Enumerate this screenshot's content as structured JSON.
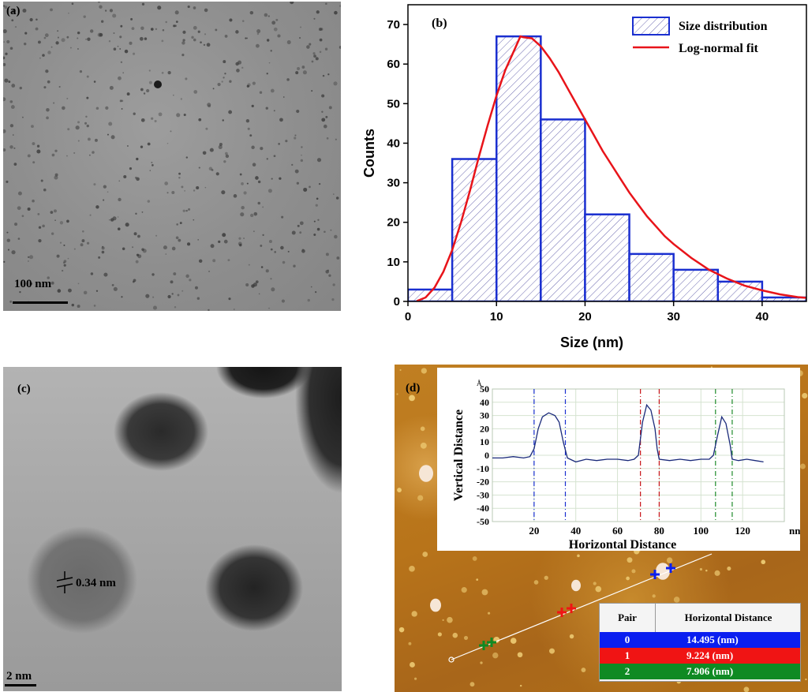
{
  "panel_a": {
    "label": "(a)",
    "scale": "100 nm"
  },
  "panel_b": {
    "label": "(b)"
  },
  "panel_c": {
    "label": "(c)",
    "lattice": "0.34 nm",
    "scale": "2 nm"
  },
  "panel_d": {
    "label": "(d)",
    "table": {
      "headers": [
        "Pair",
        "Horizontal Distance"
      ],
      "rows": [
        {
          "pair": "0",
          "distance": "14.495 (nm)",
          "color": "#0a1ef0"
        },
        {
          "pair": "1",
          "distance": "9.224 (nm)",
          "color": "#f01414"
        },
        {
          "pair": "2",
          "distance": "7.906 (nm)",
          "color": "#0f8a23"
        }
      ]
    }
  },
  "chart_data": [
    {
      "type": "bar",
      "panel": "(b)",
      "xlabel": "Size (nm)",
      "ylabel": "Counts",
      "xlim": [
        0,
        45
      ],
      "ylim": [
        0,
        75
      ],
      "xticks": [
        0,
        10,
        20,
        30,
        40
      ],
      "yticks": [
        0,
        10,
        20,
        30,
        40,
        50,
        60,
        70
      ],
      "bins": [
        {
          "x0": 0,
          "x1": 5,
          "count": 3
        },
        {
          "x0": 5,
          "x1": 10,
          "count": 36
        },
        {
          "x0": 10,
          "x1": 15,
          "count": 67
        },
        {
          "x0": 15,
          "x1": 20,
          "count": 46
        },
        {
          "x0": 20,
          "x1": 25,
          "count": 22
        },
        {
          "x0": 25,
          "x1": 30,
          "count": 12
        },
        {
          "x0": 30,
          "x1": 35,
          "count": 8
        },
        {
          "x0": 35,
          "x1": 40,
          "count": 5
        },
        {
          "x0": 40,
          "x1": 45,
          "count": 1
        }
      ],
      "fit": {
        "name": "Log-normal fit",
        "points": [
          [
            1,
            0.1
          ],
          [
            2,
            1
          ],
          [
            3,
            3.5
          ],
          [
            4,
            7.5
          ],
          [
            5,
            13
          ],
          [
            6,
            20
          ],
          [
            7,
            28
          ],
          [
            8,
            36.5
          ],
          [
            9,
            44.5
          ],
          [
            10,
            52
          ],
          [
            11,
            58.5
          ],
          [
            12,
            63.5
          ],
          [
            12.7,
            67
          ],
          [
            13,
            66.8
          ],
          [
            14,
            66.5
          ],
          [
            15,
            64.5
          ],
          [
            16,
            61.5
          ],
          [
            17,
            58
          ],
          [
            18,
            54
          ],
          [
            19,
            50
          ],
          [
            20,
            46
          ],
          [
            21,
            42
          ],
          [
            22,
            38
          ],
          [
            23,
            34.5
          ],
          [
            24,
            31
          ],
          [
            25,
            27.5
          ],
          [
            26,
            24.5
          ],
          [
            27,
            21.5
          ],
          [
            28,
            19
          ],
          [
            29,
            16.5
          ],
          [
            30,
            14.5
          ],
          [
            32,
            11
          ],
          [
            34,
            8
          ],
          [
            36,
            5.8
          ],
          [
            38,
            4
          ],
          [
            40,
            2.8
          ],
          [
            42,
            1.8
          ],
          [
            44,
            1.1
          ],
          [
            45,
            0.9
          ]
        ],
        "color": "#e8141a"
      },
      "bar_series_name": "Size distribution",
      "legend_position": "top-right"
    },
    {
      "type": "line",
      "panel": "(d) inset",
      "xlabel": "Horizontal Distance",
      "ylabel": "Vertical Distance",
      "y_unit": "Å",
      "x_unit": "nm",
      "xticks": [
        20,
        40,
        60,
        80,
        100,
        120
      ],
      "yticks": [
        50,
        40,
        30,
        20,
        10,
        0,
        -10,
        -20,
        -30,
        -40,
        -50
      ],
      "xlim": [
        0,
        140
      ],
      "ylim": [
        -50,
        50
      ],
      "profile": [
        [
          0,
          -2
        ],
        [
          5,
          -2
        ],
        [
          10,
          -1
        ],
        [
          15,
          -2
        ],
        [
          18,
          -1
        ],
        [
          20,
          5
        ],
        [
          22,
          20
        ],
        [
          24,
          29
        ],
        [
          27,
          32
        ],
        [
          30,
          30
        ],
        [
          32,
          25
        ],
        [
          34,
          10
        ],
        [
          36,
          -2
        ],
        [
          40,
          -5
        ],
        [
          45,
          -3
        ],
        [
          50,
          -4
        ],
        [
          55,
          -3
        ],
        [
          60,
          -3
        ],
        [
          65,
          -4
        ],
        [
          68,
          -3
        ],
        [
          70,
          0
        ],
        [
          72,
          25
        ],
        [
          74,
          38
        ],
        [
          76,
          34
        ],
        [
          78,
          20
        ],
        [
          79,
          5
        ],
        [
          80,
          -3
        ],
        [
          85,
          -4
        ],
        [
          90,
          -3
        ],
        [
          95,
          -4
        ],
        [
          100,
          -3
        ],
        [
          104,
          -3
        ],
        [
          106,
          0
        ],
        [
          108,
          15
        ],
        [
          110,
          29
        ],
        [
          112,
          24
        ],
        [
          114,
          8
        ],
        [
          115,
          -3
        ],
        [
          118,
          -4
        ],
        [
          122,
          -3
        ],
        [
          126,
          -4
        ],
        [
          130,
          -5
        ]
      ],
      "cursors": [
        {
          "x": 20,
          "color": "#1a2fd0"
        },
        {
          "x": 35,
          "color": "#1a2fd0"
        },
        {
          "x": 71,
          "color": "#c8141a"
        },
        {
          "x": 80,
          "color": "#c8141a"
        },
        {
          "x": 107,
          "color": "#1d8a2a"
        },
        {
          "x": 115,
          "color": "#1d8a2a"
        }
      ]
    }
  ]
}
